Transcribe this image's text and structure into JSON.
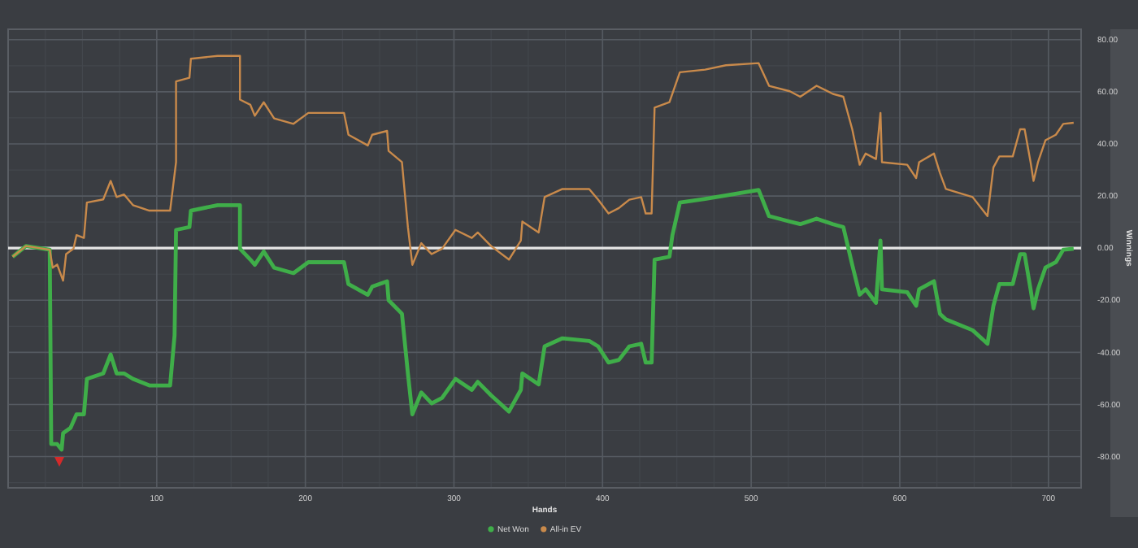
{
  "chart_data": {
    "type": "line",
    "xlabel": "Hands",
    "ylabel": "Winnings",
    "xlim": [
      0,
      722
    ],
    "xticks": [
      100,
      200,
      300,
      400,
      500,
      600,
      700
    ],
    "ylim": [
      -92,
      84
    ],
    "yticks": [
      {
        "value": 80,
        "label": "80.00"
      },
      {
        "value": 60,
        "label": "60.00"
      },
      {
        "value": 40,
        "label": "40.00"
      },
      {
        "value": 20,
        "label": "20.00"
      },
      {
        "value": 0,
        "label": "0.00"
      },
      {
        "value": -20,
        "label": "-20.00"
      },
      {
        "value": -40,
        "label": "-40.00"
      },
      {
        "value": -60,
        "label": "-60.00"
      },
      {
        "value": -80,
        "label": "-80.00"
      }
    ],
    "grid": true,
    "legend": "bottom",
    "marker": "none",
    "line_style": "solid",
    "ref_lines": [
      {
        "axis": "y",
        "value": 0,
        "color": "#e6e6e6"
      }
    ],
    "series": [
      {
        "name": "Net Won",
        "color": "#3fae49",
        "x": [
          3,
          12,
          28,
          29,
          33,
          36,
          37,
          42,
          46,
          51,
          53,
          64,
          69,
          73,
          78,
          84,
          95,
          109,
          112,
          113,
          122,
          123,
          141,
          156,
          156,
          163,
          166,
          172,
          179,
          192,
          202,
          226,
          229,
          242,
          245,
          255,
          256,
          265,
          269,
          272,
          278,
          285,
          292,
          301,
          312,
          316,
          325,
          337,
          345,
          346,
          357,
          361,
          373,
          391,
          397,
          404,
          411,
          418,
          426,
          429,
          433,
          435,
          445,
          447,
          452,
          469,
          483,
          505,
          512,
          526,
          533,
          544,
          555,
          562,
          568,
          573,
          577,
          584,
          587,
          588,
          605,
          611,
          613,
          623,
          627,
          631,
          649,
          659,
          663,
          667,
          676,
          681,
          684,
          688,
          690,
          693,
          698,
          705,
          710,
          717
        ],
        "values": [
          -3.3,
          0.8,
          -0.6,
          -75.2,
          -75.2,
          -77.3,
          -71,
          -69,
          -63.8,
          -63.8,
          -50.2,
          -48.1,
          -40.8,
          -48.1,
          -48.1,
          -50.2,
          -52.7,
          -52.7,
          -33.5,
          7,
          8.1,
          14.4,
          16.5,
          16.5,
          -0.2,
          -4.4,
          -6.4,
          -1.3,
          -7.5,
          -9.6,
          -5.4,
          -5.4,
          -13.8,
          -17.9,
          -14.8,
          -12.7,
          -20,
          -25.2,
          -48.1,
          -63.8,
          -55.4,
          -59.6,
          -57.5,
          -50.2,
          -54.4,
          -51.3,
          -56.5,
          -62.7,
          -54.4,
          -48.1,
          -52.3,
          -37.7,
          -34.6,
          -35.6,
          -37.7,
          -43.9,
          -42.9,
          -37.7,
          -36.7,
          -43.9,
          -43.9,
          -4.4,
          -3.3,
          5,
          17.5,
          18.9,
          20.2,
          22.3,
          12.3,
          10.2,
          9.2,
          11.3,
          9.2,
          8.1,
          -6.4,
          -17.9,
          -15.8,
          -21,
          2.9,
          -15.8,
          -16.9,
          -22.1,
          -15.8,
          -12.7,
          -25.2,
          -27.3,
          -31.5,
          -36.7,
          -22.1,
          -13.8,
          -13.8,
          -2.3,
          -2.3,
          -15.8,
          -23.1,
          -15.8,
          -7.5,
          -5.4,
          -0.6,
          -0.2
        ]
      },
      {
        "name": "All-in EV",
        "color": "#c98a4b",
        "x": [
          3,
          12,
          28,
          30,
          33,
          37,
          39,
          44,
          46,
          51,
          53,
          64,
          69,
          73,
          78,
          84,
          95,
          109,
          113,
          113,
          122,
          123,
          141,
          156,
          156,
          163,
          166,
          172,
          179,
          192,
          202,
          226,
          229,
          242,
          245,
          255,
          256,
          265,
          269,
          272,
          278,
          285,
          292,
          301,
          312,
          316,
          325,
          337,
          345,
          346,
          357,
          361,
          373,
          391,
          397,
          404,
          411,
          418,
          426,
          429,
          433,
          435,
          445,
          452,
          469,
          483,
          505,
          512,
          526,
          533,
          544,
          555,
          562,
          568,
          573,
          577,
          584,
          587,
          588,
          605,
          611,
          613,
          623,
          627,
          631,
          649,
          659,
          663,
          667,
          676,
          681,
          684,
          688,
          690,
          693,
          698,
          705,
          710,
          717
        ],
        "values": [
          -3.3,
          0.8,
          -0.6,
          -7.5,
          -6.3,
          -12.5,
          -2.3,
          -0.2,
          5,
          3.9,
          17.5,
          18.7,
          25.8,
          19.6,
          20.6,
          16.5,
          14.4,
          14.4,
          33,
          64,
          65.4,
          72.7,
          73.8,
          73.8,
          57,
          55,
          50.8,
          56,
          49.8,
          47.7,
          51.9,
          51.9,
          43.5,
          39.4,
          43.5,
          45,
          37.3,
          33,
          8.1,
          -6.4,
          1.9,
          -2.3,
          -0.2,
          7,
          3.9,
          6,
          0.8,
          -4.4,
          2.9,
          10.2,
          6,
          19.6,
          22.7,
          22.7,
          18.6,
          13.3,
          15.4,
          18.6,
          19.6,
          13.3,
          13.3,
          53.9,
          56,
          67.5,
          68.5,
          70.2,
          71,
          62.3,
          60.2,
          58.1,
          62.3,
          59.2,
          58.1,
          45.6,
          32,
          36.3,
          34.2,
          51.9,
          33,
          32,
          26.9,
          33,
          36.3,
          28.9,
          22.7,
          19.6,
          12.3,
          31,
          35.2,
          35.2,
          45.6,
          45.6,
          33,
          25.8,
          33,
          41.4,
          43.5,
          47.7,
          48.1
        ]
      }
    ]
  }
}
